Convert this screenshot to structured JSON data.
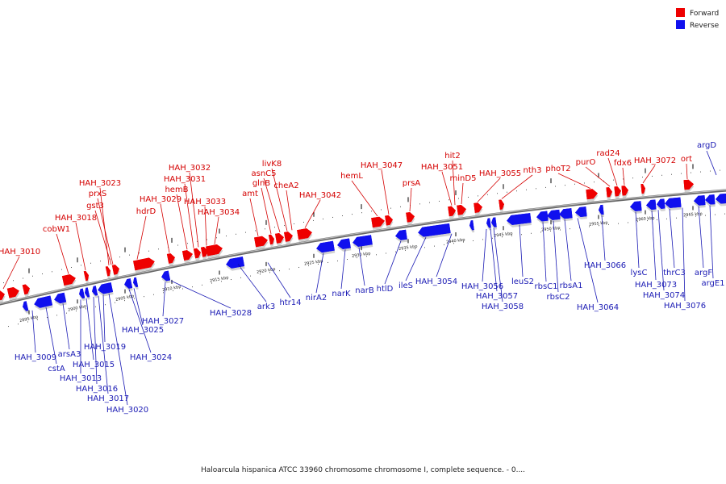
{
  "caption": "Haloarcula hispanica ATCC 33960 chromosome chromosome I, complete sequence. - 0....",
  "legend": [
    {
      "label": "Forward",
      "color": "#ee0000"
    },
    {
      "label": "Reverse",
      "color": "#1010ee"
    }
  ],
  "colors": {
    "forward": "#ee0000",
    "reverse": "#1010ee",
    "backbone": "#888888",
    "forward_label": "#d40000",
    "reverse_label": "#1a1ab4"
  },
  "ticks": [
    "2895 kbp",
    "2900 kbp",
    "2905 kbp",
    "2910 kbp",
    "2915 kbp",
    "2920 kbp",
    "2925 kbp",
    "2930 kbp",
    "2935 kbp",
    "2940 kbp",
    "2945 kbp",
    "2950 kbp",
    "2955 kbp",
    "2960 kbp",
    "2965 kbp"
  ],
  "forward_genes": [
    "HAH_3010",
    "cobW1",
    "HAH_3018",
    "gst3",
    "prxS",
    "HAH_3023",
    "hdrD",
    "HAH_3029",
    "hemB",
    "HAH_3031",
    "HAH_3032",
    "HAH_3033",
    "HAH_3034",
    "amt",
    "glnB",
    "asnC5",
    "livK8",
    "cheA2",
    "HAH_3042",
    "hemL",
    "HAH_3047",
    "prsA",
    "HAH_3051",
    "hit2",
    "minD5",
    "HAH_3055",
    "nth3",
    "phoT2",
    "purO",
    "rad24",
    "fdx6",
    "HAH_3072",
    "ort"
  ],
  "reverse_genes": [
    "HAH_3009",
    "cstA",
    "arsA3",
    "HAH_3013",
    "HAH_3015",
    "HAH_3016",
    "HAH_3017",
    "HAH_3019",
    "HAH_3020",
    "HAH_3024",
    "HAH_3025",
    "HAH_3027",
    "HAH_3028",
    "ark3",
    "htr14",
    "nirA2",
    "narK",
    "narB",
    "htlD",
    "ileS",
    "HAH_3054",
    "HAH_3056",
    "HAH_3057",
    "HAH_3058",
    "leuS2",
    "rbsC1",
    "rbsC2",
    "rbsA1",
    "HAH_3064",
    "HAH_3066",
    "lysC",
    "HAH_3073",
    "HAH_3074",
    "thrC3",
    "HAH_3076",
    "argF",
    "argE1",
    "argD"
  ]
}
